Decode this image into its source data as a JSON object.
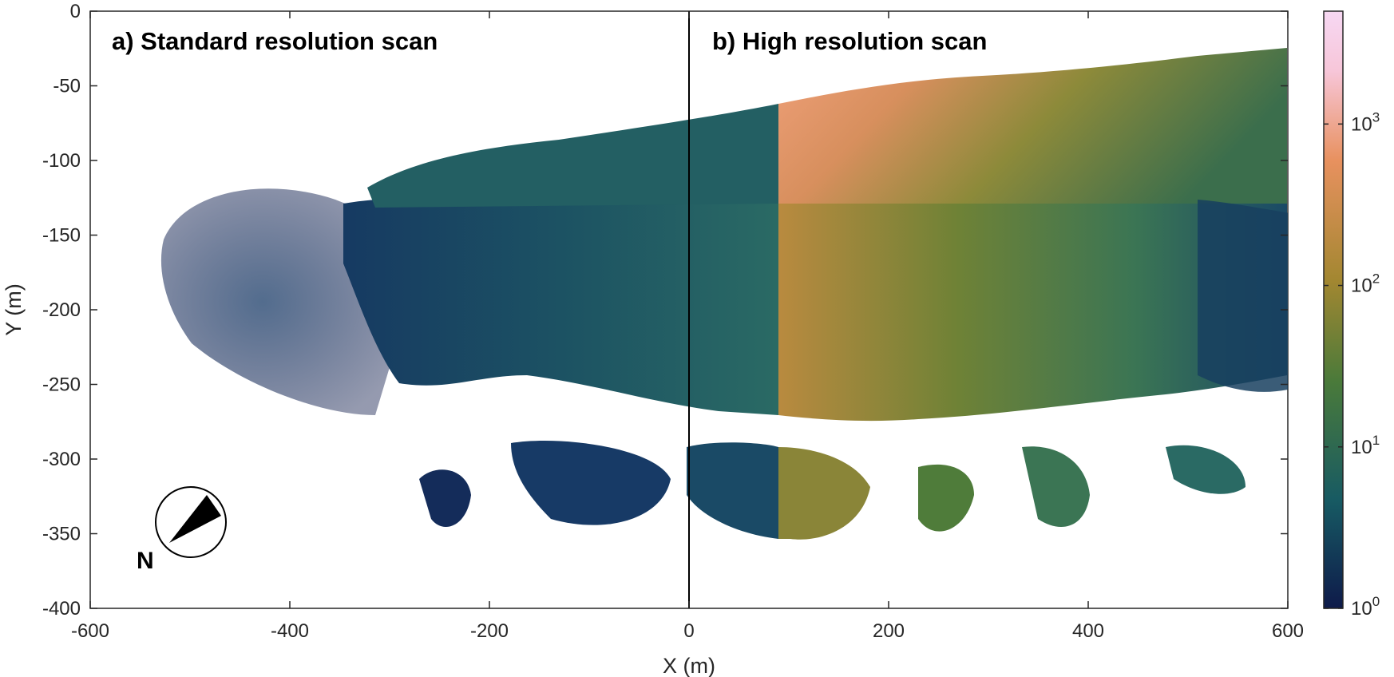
{
  "chart_data": {
    "type": "heatmap",
    "title": "",
    "xlabel": "X (m)",
    "ylabel": "Y (m)",
    "xlim": [
      -600,
      600
    ],
    "ylim": [
      -400,
      0
    ],
    "x_ticks": [
      -600,
      -400,
      -200,
      0,
      200,
      400,
      600
    ],
    "x_tick_labels": [
      "-600",
      "-400",
      "-200",
      "0",
      "200",
      "400",
      "600"
    ],
    "y_ticks": [
      0,
      -50,
      -100,
      -150,
      -200,
      -250,
      -300,
      -350,
      -400
    ],
    "y_tick_labels": [
      "0",
      "-50",
      "-100",
      "-150",
      "-200",
      "-250",
      "-300",
      "-350",
      "-400"
    ],
    "grid": false,
    "panels": [
      {
        "label": "a) Standard resolution scan",
        "x_range": [
          -600,
          0
        ]
      },
      {
        "label": "b) High resolution scan",
        "x_range": [
          0,
          600
        ]
      }
    ],
    "divider_x": 0,
    "colorbar": {
      "scale": "log",
      "range": [
        1,
        5000
      ],
      "ticks": [
        1,
        10,
        100,
        1000
      ],
      "tick_labels": [
        {
          "base": "10",
          "exp": "0"
        },
        {
          "base": "10",
          "exp": "1"
        },
        {
          "base": "10",
          "exp": "2"
        },
        {
          "base": "10",
          "exp": "3"
        }
      ],
      "colors": [
        "#0e1a4a",
        "#175a63",
        "#4a7a3a",
        "#a38731",
        "#e8915f",
        "#f7c6d9",
        "#f7d8f3"
      ]
    },
    "density_levels": {
      "panel_a": {
        "main_body": 10,
        "dense_core": 14,
        "west_sparse": 2
      },
      "panel_b": {
        "top_pink": 1000,
        "upper_orange": 300,
        "central_band": 80,
        "south_green": 30,
        "east_fringe": 5
      }
    },
    "north_arrow": {
      "label": "N"
    }
  }
}
